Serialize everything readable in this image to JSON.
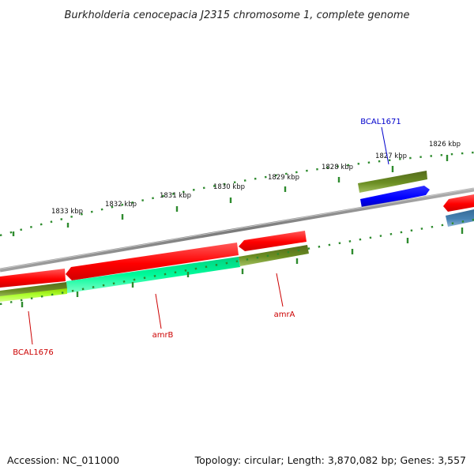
{
  "title": "Burkholderia cenocepacia J2315 chromosome 1, complete genome",
  "accession": "Accession: NC_011000",
  "topology": "Topology: circular; Length: 3,870,082 bp; Genes: 3,557",
  "colors": {
    "backbone": "#7f7f7f",
    "tick": "#2e8b2e",
    "red_gene": "#ff0000",
    "olive_gene": "#6b8e23",
    "spring_green_gene": "#00fa9a",
    "chartreuse_gene": "#adff2f",
    "blue_gene": "#0000ff",
    "steel_blue_gene": "#4682b4",
    "label_red": "#cc0000",
    "label_blue": "#0000cc"
  },
  "kbp_labels": [
    "1833 kbp",
    "1832 kbp",
    "1831 kbp",
    "1830 kbp",
    "1829 kbp",
    "1828 kbp",
    "1827 kbp",
    "1826 kbp"
  ],
  "gene_labels": [
    {
      "name": "BCAL1671",
      "color": "#0000cc"
    },
    {
      "name": "amrA",
      "color": "#cc0000"
    },
    {
      "name": "amrB",
      "color": "#cc0000"
    },
    {
      "name": "BCAL1676",
      "color": "#cc0000"
    }
  ]
}
